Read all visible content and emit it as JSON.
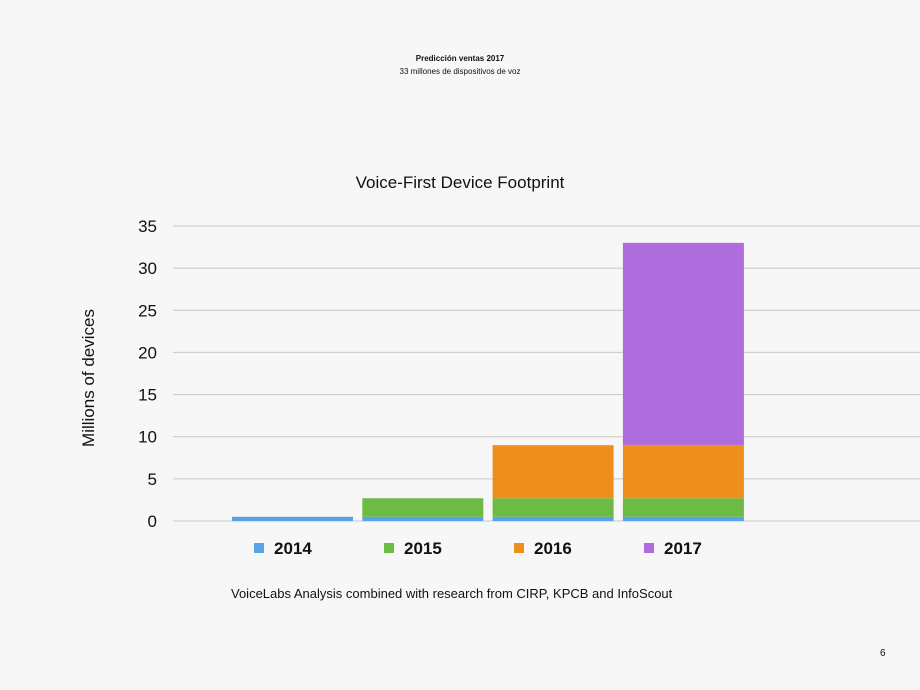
{
  "slide": {
    "title": "Predicción ventas 2017",
    "subtitle": "33 millones de dispositivos de voz",
    "source_note": "VoiceLabs Analysis combined with research from CIRP, KPCB and InfoScout",
    "page_number": "6"
  },
  "colors": {
    "2014": "#5aa2e6",
    "2015": "#6dbb45",
    "2016": "#ee8e1c",
    "2017": "#ae6cdc",
    "gridline": "#c8c8c8",
    "background": "#f7f7f7"
  },
  "chart_data": {
    "type": "bar",
    "stacked": true,
    "title": "Voice-First Device Footprint",
    "xlabel": "",
    "ylabel": "Millions of devices",
    "ylim": [
      0,
      35
    ],
    "yticks": [
      0,
      5,
      10,
      15,
      20,
      25,
      30,
      35
    ],
    "grid": true,
    "legend_position": "bottom",
    "bar_groups": [
      "2014",
      "2015",
      "2016",
      "2017"
    ],
    "series": [
      {
        "name": "2014",
        "values": [
          0.5,
          0.5,
          0.5,
          0.5
        ]
      },
      {
        "name": "2015",
        "values": [
          0,
          2.2,
          2.2,
          2.2
        ]
      },
      {
        "name": "2016",
        "values": [
          0,
          0,
          6.3,
          6.3
        ]
      },
      {
        "name": "2017",
        "values": [
          0,
          0,
          0,
          24
        ]
      }
    ]
  }
}
